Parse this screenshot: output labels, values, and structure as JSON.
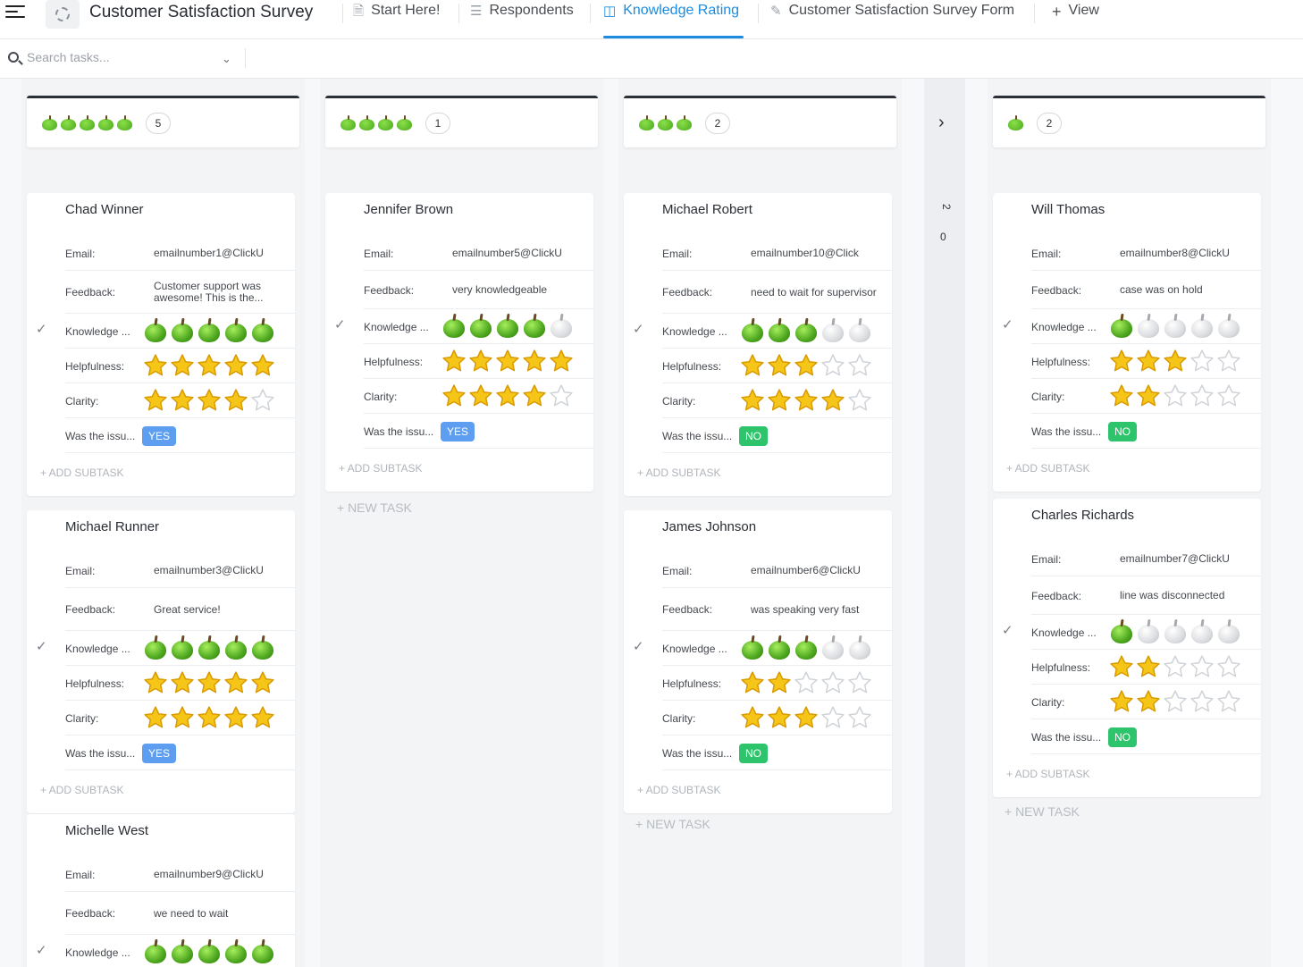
{
  "app": {
    "title": "Customer Satisfaction Survey"
  },
  "tabs": [
    {
      "label": "Start Here!",
      "icon": "doc-icon"
    },
    {
      "label": "Respondents",
      "icon": "list-icon"
    },
    {
      "label": "Knowledge Rating",
      "icon": "board-icon",
      "active": true
    },
    {
      "label": "Customer Satisfaction Survey Form",
      "icon": "form-icon"
    },
    {
      "label": "View",
      "icon": "plus-icon"
    }
  ],
  "search": {
    "placeholder": "Search tasks..."
  },
  "field_labels": {
    "email": "Email:",
    "feedback": "Feedback:",
    "knowledge": "Knowledge ...",
    "helpfulness": "Helpfulness:",
    "clarity": "Clarity:",
    "resolved": "Was the issu..."
  },
  "actions": {
    "add_subtask": "+ ADD SUBTASK",
    "new_task": "+ NEW TASK"
  },
  "colors": {
    "accent": "#1b8ce0",
    "yes": "#5e9ef0",
    "no": "#2ec46b",
    "apple_on": "#4ea71e",
    "star_on": "#f5c518"
  },
  "columns": [
    {
      "apples": 5,
      "count": "5"
    },
    {
      "apples": 4,
      "count": "1"
    },
    {
      "apples": 3,
      "count": "2"
    },
    {
      "apples": 1,
      "count": "2"
    }
  ],
  "collapsed_column": {
    "count": "2",
    "zero": "0"
  },
  "cards": [
    {
      "name": "Chad Winner",
      "email": "emailnumber1@ClickU",
      "feedback": "Customer support was awesome! This is the...",
      "knowledge": 5,
      "helpfulness": 5,
      "clarity": 4,
      "resolved": "YES"
    },
    {
      "name": "Michael Runner",
      "email": "emailnumber3@ClickU",
      "feedback": "Great service!",
      "knowledge": 5,
      "helpfulness": 5,
      "clarity": 5,
      "resolved": "YES"
    },
    {
      "name": "Michelle West",
      "email": "emailnumber9@ClickU",
      "feedback": "we need to wait",
      "knowledge": 5
    },
    {
      "name": "Jennifer Brown",
      "email": "emailnumber5@ClickU",
      "feedback": "very knowledgeable",
      "knowledge": 4,
      "helpfulness": 5,
      "clarity": 4,
      "resolved": "YES"
    },
    {
      "name": "Michael Robert",
      "email": "emailnumber10@Click",
      "feedback": "need to wait for supervisor",
      "knowledge": 3,
      "helpfulness": 3,
      "clarity": 4,
      "resolved": "NO"
    },
    {
      "name": "James Johnson",
      "email": "emailnumber6@ClickU",
      "feedback": "was speaking very fast",
      "knowledge": 3,
      "helpfulness": 2,
      "clarity": 3,
      "resolved": "NO"
    },
    {
      "name": "Will Thomas",
      "email": "emailnumber8@ClickU",
      "feedback": "case was on hold",
      "knowledge": 1,
      "helpfulness": 3,
      "clarity": 2,
      "resolved": "NO"
    },
    {
      "name": "Charles Richards",
      "email": "emailnumber7@ClickU",
      "feedback": "line was disconnected",
      "knowledge": 1,
      "helpfulness": 2,
      "clarity": 2,
      "resolved": "NO"
    }
  ]
}
